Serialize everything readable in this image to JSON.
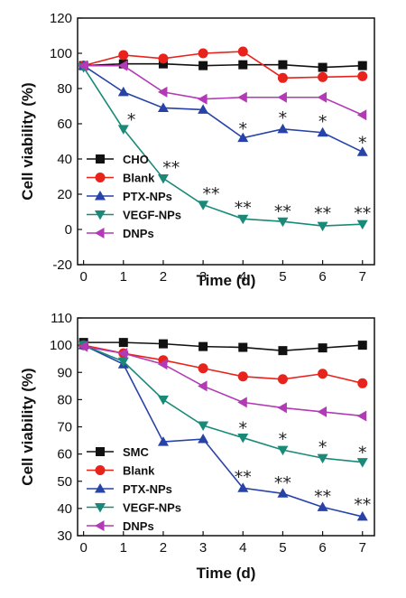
{
  "chart_data": [
    {
      "type": "line",
      "xlabel": "Time (d)",
      "ylabel": "Cell viability (%)",
      "xlim": [
        -0.15,
        7.3
      ],
      "ylim": [
        -20,
        120
      ],
      "xticks": [
        "0",
        "1",
        "2",
        "3",
        "4",
        "5",
        "6",
        "7"
      ],
      "yticks": [
        "-20",
        "0",
        "20",
        "40",
        "60",
        "80",
        "100",
        "120"
      ],
      "legend": "bottom-left",
      "x": [
        0,
        1,
        2,
        3,
        4,
        5,
        6,
        7
      ],
      "series": [
        {
          "name": "CHO",
          "color": "#111111",
          "marker": "square",
          "values": [
            93,
            94,
            94,
            93,
            93.5,
            93.5,
            92,
            93
          ]
        },
        {
          "name": "Blank",
          "color": "#e8231c",
          "marker": "circle",
          "values": [
            93,
            99,
            97,
            100,
            101,
            86,
            86.5,
            87
          ]
        },
        {
          "name": "PTX-NPs",
          "color": "#2743a8",
          "marker": "triangle-up",
          "values": [
            93,
            78,
            69,
            68,
            52,
            57,
            55,
            44
          ]
        },
        {
          "name": "VEGF-NPs",
          "color": "#1a8a78",
          "marker": "triangle-down",
          "values": [
            92,
            57,
            29,
            14,
            6,
            4.5,
            2,
            3
          ]
        },
        {
          "name": "DNPs",
          "color": "#b23ab5",
          "marker": "triangle-left",
          "values": [
            93,
            93,
            78,
            74,
            75,
            75,
            75,
            65
          ]
        }
      ],
      "annotations": [
        {
          "text": "*",
          "x": 1.2,
          "y": 63
        },
        {
          "text": "**",
          "x": 2.2,
          "y": 36
        },
        {
          "text": "**",
          "x": 3.2,
          "y": 21
        },
        {
          "text": "**",
          "x": 4.0,
          "y": 13
        },
        {
          "text": "*",
          "x": 4.0,
          "y": 58
        },
        {
          "text": "*",
          "x": 5.0,
          "y": 64
        },
        {
          "text": "**",
          "x": 5.0,
          "y": 11
        },
        {
          "text": "*",
          "x": 6.0,
          "y": 62
        },
        {
          "text": "**",
          "x": 6.0,
          "y": 10
        },
        {
          "text": "*",
          "x": 7.0,
          "y": 50
        },
        {
          "text": "**",
          "x": 7.0,
          "y": 10
        }
      ]
    },
    {
      "type": "line",
      "xlabel": "Time (d)",
      "ylabel": "Cell viability (%)",
      "xlim": [
        -0.15,
        7.3
      ],
      "ylim": [
        30,
        110
      ],
      "xticks": [
        "0",
        "1",
        "2",
        "3",
        "4",
        "5",
        "6",
        "7"
      ],
      "yticks": [
        "30",
        "40",
        "50",
        "60",
        "70",
        "80",
        "90",
        "100",
        "110"
      ],
      "legend": "bottom-left",
      "x": [
        0,
        1,
        2,
        3,
        4,
        5,
        6,
        7
      ],
      "series": [
        {
          "name": "SMC",
          "color": "#111111",
          "marker": "square",
          "values": [
            101,
            101,
            100.5,
            99.5,
            99.2,
            98,
            99,
            100
          ]
        },
        {
          "name": "Blank",
          "color": "#e8231c",
          "marker": "circle",
          "values": [
            100,
            97,
            94.5,
            91.5,
            88.5,
            87.5,
            89.5,
            86
          ]
        },
        {
          "name": "PTX-NPs",
          "color": "#2743a8",
          "marker": "triangle-up",
          "values": [
            100,
            93,
            64.5,
            65.5,
            47.5,
            45.5,
            40.5,
            37
          ]
        },
        {
          "name": "VEGF-NPs",
          "color": "#1a8a78",
          "marker": "triangle-down",
          "values": [
            100,
            94,
            80,
            70.5,
            66,
            61.5,
            58.5,
            57
          ]
        },
        {
          "name": "DNPs",
          "color": "#b23ab5",
          "marker": "triangle-left",
          "values": [
            99.5,
            97,
            93,
            85,
            79,
            77,
            75.5,
            74
          ]
        }
      ],
      "annotations": [
        {
          "text": "*",
          "x": 4.0,
          "y": 70
        },
        {
          "text": "*",
          "x": 5.0,
          "y": 66
        },
        {
          "text": "*",
          "x": 6.0,
          "y": 63
        },
        {
          "text": "*",
          "x": 7.0,
          "y": 61
        },
        {
          "text": "**",
          "x": 4.0,
          "y": 52
        },
        {
          "text": "**",
          "x": 5.0,
          "y": 50
        },
        {
          "text": "**",
          "x": 6.0,
          "y": 45
        },
        {
          "text": "**",
          "x": 7.0,
          "y": 42
        }
      ]
    }
  ]
}
